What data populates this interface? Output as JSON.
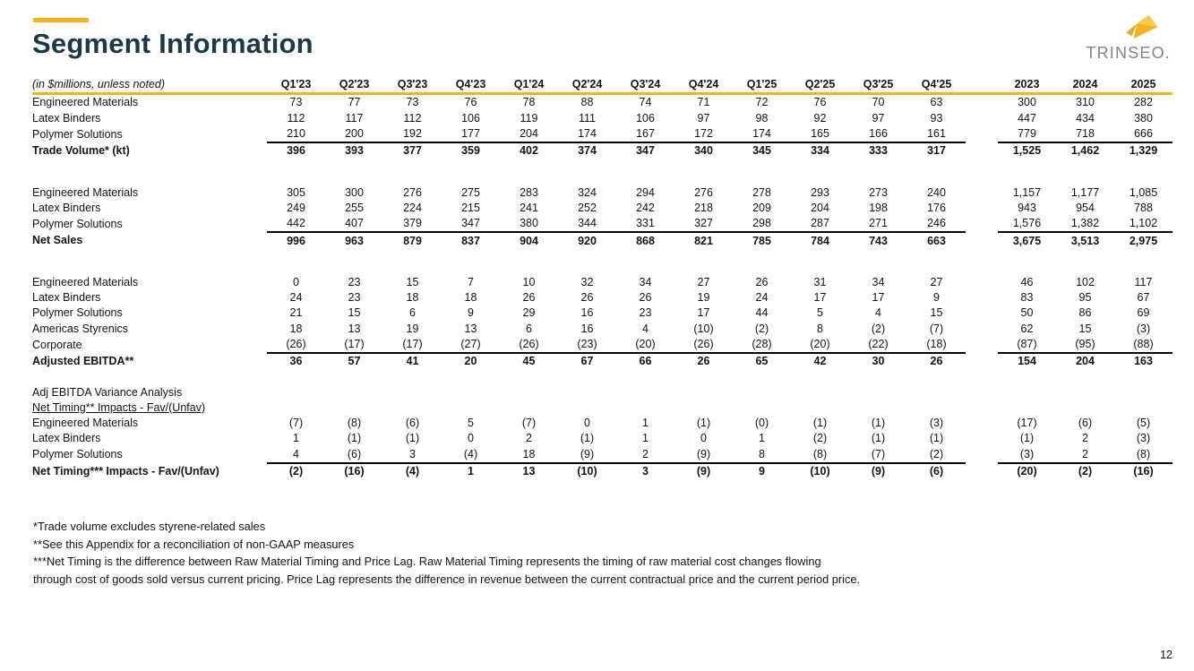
{
  "slide": {
    "title": "Segment Information",
    "page_number": "12"
  },
  "logo": {
    "text": "TRINSEO.",
    "arrow_icon": "trinseo-arrow-icon",
    "brand_gold": "#F5B324",
    "brand_dark_teal": "#1B3947",
    "brand_gray": "#808488"
  },
  "table": {
    "unit_label": "(in $millions, unless noted)",
    "quarter_columns": [
      "Q1'23",
      "Q2'23",
      "Q3'23",
      "Q4'23",
      "Q1'24",
      "Q2'24",
      "Q3'24",
      "Q4'24",
      "Q1'25",
      "Q2'25",
      "Q3'25",
      "Q4'25"
    ],
    "year_columns": [
      "2023",
      "2024",
      "2025"
    ],
    "sections": [
      {
        "name": "trade-volume",
        "rows": [
          {
            "label": "Engineered Materials",
            "cells": [
              "73",
              "77",
              "73",
              "76",
              "78",
              "88",
              "74",
              "71",
              "72",
              "76",
              "70",
              "63"
            ],
            "years": [
              "300",
              "310",
              "282"
            ]
          },
          {
            "label": "Latex Binders",
            "cells": [
              "112",
              "117",
              "112",
              "106",
              "119",
              "111",
              "106",
              "97",
              "98",
              "92",
              "97",
              "93"
            ],
            "years": [
              "447",
              "434",
              "380"
            ]
          },
          {
            "label": "Polymer Solutions",
            "cells": [
              "210",
              "200",
              "192",
              "177",
              "204",
              "174",
              "167",
              "172",
              "174",
              "165",
              "166",
              "161"
            ],
            "years": [
              "779",
              "718",
              "666"
            ]
          },
          {
            "label": "Trade Volume* (kt)",
            "total": true,
            "cells": [
              "396",
              "393",
              "377",
              "359",
              "402",
              "374",
              "347",
              "340",
              "345",
              "334",
              "333",
              "317"
            ],
            "years": [
              "1,525",
              "1,462",
              "1,329"
            ]
          }
        ]
      },
      {
        "name": "net-sales",
        "rows": [
          {
            "label": "Engineered Materials",
            "cells": [
              "305",
              "300",
              "276",
              "275",
              "283",
              "324",
              "294",
              "276",
              "278",
              "293",
              "273",
              "240"
            ],
            "years": [
              "1,157",
              "1,177",
              "1,085"
            ]
          },
          {
            "label": "Latex Binders",
            "cells": [
              "249",
              "255",
              "224",
              "215",
              "241",
              "252",
              "242",
              "218",
              "209",
              "204",
              "198",
              "176"
            ],
            "years": [
              "943",
              "954",
              "788"
            ]
          },
          {
            "label": "Polymer Solutions",
            "cells": [
              "442",
              "407",
              "379",
              "347",
              "380",
              "344",
              "331",
              "327",
              "298",
              "287",
              "271",
              "246"
            ],
            "years": [
              "1,576",
              "1,382",
              "1,102"
            ]
          },
          {
            "label": "Net Sales",
            "total": true,
            "cells": [
              "996",
              "963",
              "879",
              "837",
              "904",
              "920",
              "868",
              "821",
              "785",
              "784",
              "743",
              "663"
            ],
            "years": [
              "3,675",
              "3,513",
              "2,975"
            ]
          }
        ]
      },
      {
        "name": "adjusted-ebitda",
        "rows": [
          {
            "label": "Engineered Materials",
            "cells": [
              "0",
              "23",
              "15",
              "7",
              "10",
              "32",
              "34",
              "27",
              "26",
              "31",
              "34",
              "27"
            ],
            "years": [
              "46",
              "102",
              "117"
            ]
          },
          {
            "label": "Latex Binders",
            "cells": [
              "24",
              "23",
              "18",
              "18",
              "26",
              "26",
              "26",
              "19",
              "24",
              "17",
              "17",
              "9"
            ],
            "years": [
              "83",
              "95",
              "67"
            ]
          },
          {
            "label": "Polymer Solutions",
            "cells": [
              "21",
              "15",
              "6",
              "9",
              "29",
              "16",
              "23",
              "17",
              "44",
              "5",
              "4",
              "15"
            ],
            "years": [
              "50",
              "86",
              "69"
            ]
          },
          {
            "label": "Americas Styrenics",
            "cells": [
              "18",
              "13",
              "19",
              "13",
              "6",
              "16",
              "4",
              "(10)",
              "(2)",
              "8",
              "(2)",
              "(7)"
            ],
            "years": [
              "62",
              "15",
              "(3)"
            ]
          },
          {
            "label": "Corporate",
            "cells": [
              "(26)",
              "(17)",
              "(17)",
              "(27)",
              "(26)",
              "(23)",
              "(20)",
              "(26)",
              "(28)",
              "(20)",
              "(22)",
              "(18)"
            ],
            "years": [
              "(87)",
              "(95)",
              "(88)"
            ]
          },
          {
            "label": "Adjusted EBITDA**",
            "total": true,
            "cells": [
              "36",
              "57",
              "41",
              "20",
              "45",
              "67",
              "66",
              "26",
              "65",
              "42",
              "30",
              "26"
            ],
            "years": [
              "154",
              "204",
              "163"
            ]
          }
        ]
      },
      {
        "name": "net-timing",
        "rows": [
          {
            "label": "Adj EBITDA Variance Analysis",
            "type": "subheader"
          },
          {
            "label": "Net Timing** Impacts - Fav/(Unfav)",
            "type": "subheader-underline"
          },
          {
            "label": "Engineered Materials",
            "cells": [
              "(7)",
              "(8)",
              "(6)",
              "5",
              "(7)",
              "0",
              "1",
              "(1)",
              "(0)",
              "(1)",
              "(1)",
              "(3)"
            ],
            "years": [
              "(17)",
              "(6)",
              "(5)"
            ]
          },
          {
            "label": "Latex Binders",
            "cells": [
              "1",
              "(1)",
              "(1)",
              "0",
              "2",
              "(1)",
              "1",
              "0",
              "1",
              "(2)",
              "(1)",
              "(1)"
            ],
            "years": [
              "(1)",
              "2",
              "(3)"
            ]
          },
          {
            "label": "Polymer Solutions",
            "cells": [
              "4",
              "(6)",
              "3",
              "(4)",
              "18",
              "(9)",
              "2",
              "(9)",
              "8",
              "(8)",
              "(7)",
              "(2)"
            ],
            "years": [
              "(3)",
              "2",
              "(8)"
            ]
          },
          {
            "label": "Net Timing*** Impacts - Fav/(Unfav)",
            "total": true,
            "cells": [
              "(2)",
              "(16)",
              "(4)",
              "1",
              "13",
              "(10)",
              "3",
              "(9)",
              "9",
              "(10)",
              "(9)",
              "(6)"
            ],
            "years": [
              "(20)",
              "(2)",
              "(16)"
            ]
          }
        ]
      }
    ]
  },
  "footnotes": [
    "*Trade volume excludes styrene-related sales",
    "**See this Appendix for a reconciliation of non-GAAP measures",
    "***Net Timing is the difference between Raw Material Timing and Price Lag. Raw Material Timing represents the timing of raw material cost changes flowing",
    "through cost of goods sold versus current pricing.  Price Lag represents the difference in revenue between the current contractual price and the current period price."
  ]
}
